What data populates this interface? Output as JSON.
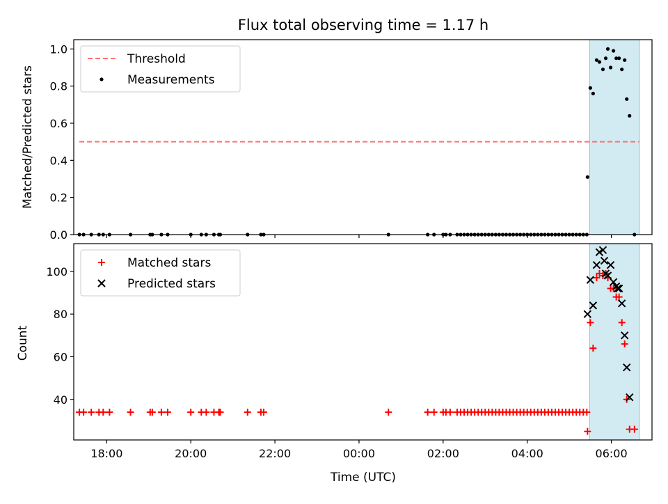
{
  "chart_data": [
    {
      "type": "scatter",
      "title": "Flux total observing time = 1.17 h",
      "xlabel": "",
      "ylabel": "Matched/Predicted stars",
      "xlim": [
        "17:13",
        "06:58"
      ],
      "ylim": [
        0,
        1.05
      ],
      "yticks": [
        "0.0",
        "0.2",
        "0.4",
        "0.6",
        "0.8",
        "1.0"
      ],
      "legend_position": "top-left",
      "shaded_span": {
        "from": "05:29",
        "to": "06:40",
        "color": "#add8e6"
      },
      "threshold": {
        "name": "Threshold",
        "y": 0.5,
        "from": "17:21",
        "to": "06:40",
        "color": "#ff7070"
      },
      "series": [
        {
          "name": "Measurements",
          "marker": "dot",
          "color": "#000000",
          "points": [
            [
              "17:21",
              0
            ],
            [
              "17:27",
              0
            ],
            [
              "17:38",
              0
            ],
            [
              "17:49",
              0
            ],
            [
              "17:55",
              0
            ],
            [
              "18:04",
              0
            ],
            [
              "18:34",
              0
            ],
            [
              "19:02",
              0
            ],
            [
              "19:05",
              0
            ],
            [
              "19:18",
              0
            ],
            [
              "19:27",
              0
            ],
            [
              "20:00",
              0
            ],
            [
              "20:15",
              0
            ],
            [
              "20:22",
              0
            ],
            [
              "20:33",
              0
            ],
            [
              "20:40",
              0
            ],
            [
              "20:42",
              0
            ],
            [
              "21:21",
              0
            ],
            [
              "21:40",
              0
            ],
            [
              "21:44",
              0
            ],
            [
              "00:42",
              0
            ],
            [
              "01:38",
              0
            ],
            [
              "01:47",
              0
            ],
            [
              "02:00",
              0
            ],
            [
              "02:04",
              0
            ],
            [
              "02:10",
              0
            ],
            [
              "02:20",
              0
            ],
            [
              "02:25",
              0
            ],
            [
              "02:30",
              0
            ],
            [
              "02:35",
              0
            ],
            [
              "02:40",
              0
            ],
            [
              "02:45",
              0
            ],
            [
              "02:50",
              0
            ],
            [
              "02:55",
              0
            ],
            [
              "03:00",
              0
            ],
            [
              "03:05",
              0
            ],
            [
              "03:10",
              0
            ],
            [
              "03:15",
              0
            ],
            [
              "03:20",
              0
            ],
            [
              "03:25",
              0
            ],
            [
              "03:30",
              0
            ],
            [
              "03:35",
              0
            ],
            [
              "03:40",
              0
            ],
            [
              "03:45",
              0
            ],
            [
              "03:50",
              0
            ],
            [
              "03:55",
              0
            ],
            [
              "04:00",
              0
            ],
            [
              "04:05",
              0
            ],
            [
              "04:10",
              0
            ],
            [
              "04:15",
              0
            ],
            [
              "04:20",
              0
            ],
            [
              "04:25",
              0
            ],
            [
              "04:30",
              0
            ],
            [
              "04:35",
              0
            ],
            [
              "04:40",
              0
            ],
            [
              "04:45",
              0
            ],
            [
              "04:50",
              0
            ],
            [
              "04:55",
              0
            ],
            [
              "05:00",
              0
            ],
            [
              "05:05",
              0
            ],
            [
              "05:10",
              0
            ],
            [
              "05:15",
              0
            ],
            [
              "05:20",
              0
            ],
            [
              "05:25",
              0
            ],
            [
              "05:26",
              0.31
            ],
            [
              "05:30",
              0.79
            ],
            [
              "05:34",
              0.76
            ],
            [
              "05:39",
              0.94
            ],
            [
              "05:43",
              0.93
            ],
            [
              "05:48",
              0.89
            ],
            [
              "05:52",
              0.95
            ],
            [
              "05:55",
              1.0
            ],
            [
              "05:59",
              0.9
            ],
            [
              "06:03",
              0.99
            ],
            [
              "06:07",
              0.95
            ],
            [
              "06:11",
              0.95
            ],
            [
              "06:15",
              0.89
            ],
            [
              "06:19",
              0.94
            ],
            [
              "06:22",
              0.73
            ],
            [
              "06:26",
              0.64
            ],
            [
              "06:33",
              0
            ]
          ]
        }
      ]
    },
    {
      "type": "scatter",
      "title": "",
      "xlabel": "Time (UTC)",
      "ylabel": "Count",
      "xlim": [
        "17:13",
        "06:58"
      ],
      "ylim": [
        21,
        113
      ],
      "xticks": [
        "18:00",
        "20:00",
        "22:00",
        "00:00",
        "02:00",
        "04:00",
        "06:00"
      ],
      "yticks": [
        "40",
        "60",
        "80",
        "100"
      ],
      "legend_position": "top-left",
      "shaded_span": {
        "from": "05:29",
        "to": "06:40",
        "color": "#add8e6"
      },
      "series": [
        {
          "name": "Matched stars",
          "marker": "plus",
          "color": "#ff0000",
          "points": [
            [
              "17:21",
              34
            ],
            [
              "17:27",
              34
            ],
            [
              "17:38",
              34
            ],
            [
              "17:49",
              34
            ],
            [
              "17:55",
              34
            ],
            [
              "18:04",
              34
            ],
            [
              "18:34",
              34
            ],
            [
              "19:02",
              34
            ],
            [
              "19:05",
              34
            ],
            [
              "19:18",
              34
            ],
            [
              "19:27",
              34
            ],
            [
              "20:00",
              34
            ],
            [
              "20:15",
              34
            ],
            [
              "20:22",
              34
            ],
            [
              "20:33",
              34
            ],
            [
              "20:40",
              34
            ],
            [
              "20:42",
              34
            ],
            [
              "21:21",
              34
            ],
            [
              "21:40",
              34
            ],
            [
              "21:44",
              34
            ],
            [
              "00:42",
              34
            ],
            [
              "01:38",
              34
            ],
            [
              "01:47",
              34
            ],
            [
              "02:00",
              34
            ],
            [
              "02:04",
              34
            ],
            [
              "02:10",
              34
            ],
            [
              "02:20",
              34
            ],
            [
              "02:25",
              34
            ],
            [
              "02:30",
              34
            ],
            [
              "02:35",
              34
            ],
            [
              "02:40",
              34
            ],
            [
              "02:45",
              34
            ],
            [
              "02:50",
              34
            ],
            [
              "02:55",
              34
            ],
            [
              "03:00",
              34
            ],
            [
              "03:05",
              34
            ],
            [
              "03:10",
              34
            ],
            [
              "03:15",
              34
            ],
            [
              "03:20",
              34
            ],
            [
              "03:25",
              34
            ],
            [
              "03:30",
              34
            ],
            [
              "03:35",
              34
            ],
            [
              "03:40",
              34
            ],
            [
              "03:45",
              34
            ],
            [
              "03:50",
              34
            ],
            [
              "03:55",
              34
            ],
            [
              "04:00",
              34
            ],
            [
              "04:05",
              34
            ],
            [
              "04:10",
              34
            ],
            [
              "04:15",
              34
            ],
            [
              "04:20",
              34
            ],
            [
              "04:25",
              34
            ],
            [
              "04:30",
              34
            ],
            [
              "04:35",
              34
            ],
            [
              "04:40",
              34
            ],
            [
              "04:45",
              34
            ],
            [
              "04:50",
              34
            ],
            [
              "04:55",
              34
            ],
            [
              "05:00",
              34
            ],
            [
              "05:05",
              34
            ],
            [
              "05:10",
              34
            ],
            [
              "05:15",
              34
            ],
            [
              "05:20",
              34
            ],
            [
              "05:25",
              34
            ],
            [
              "05:26",
              25
            ],
            [
              "05:30",
              76
            ],
            [
              "05:34",
              64
            ],
            [
              "05:39",
              97
            ],
            [
              "05:43",
              99
            ],
            [
              "05:48",
              98
            ],
            [
              "05:52",
              99
            ],
            [
              "05:55",
              97
            ],
            [
              "05:59",
              92
            ],
            [
              "06:03",
              92
            ],
            [
              "06:07",
              88
            ],
            [
              "06:11",
              88
            ],
            [
              "06:15",
              76
            ],
            [
              "06:19",
              66
            ],
            [
              "06:22",
              40
            ],
            [
              "06:26",
              26
            ],
            [
              "06:33",
              26
            ]
          ]
        },
        {
          "name": "Predicted stars",
          "marker": "x",
          "color": "#000000",
          "points": [
            [
              "05:26",
              80
            ],
            [
              "05:30",
              96
            ],
            [
              "05:34",
              84
            ],
            [
              "05:39",
              103
            ],
            [
              "05:43",
              109
            ],
            [
              "05:48",
              110
            ],
            [
              "05:50",
              105
            ],
            [
              "05:52",
              99
            ],
            [
              "05:55",
              98
            ],
            [
              "05:59",
              103
            ],
            [
              "06:03",
              95
            ],
            [
              "06:07",
              93
            ],
            [
              "06:09",
              92
            ],
            [
              "06:11",
              92
            ],
            [
              "06:15",
              85
            ],
            [
              "06:19",
              70
            ],
            [
              "06:22",
              55
            ],
            [
              "06:26",
              41
            ]
          ]
        }
      ]
    }
  ]
}
